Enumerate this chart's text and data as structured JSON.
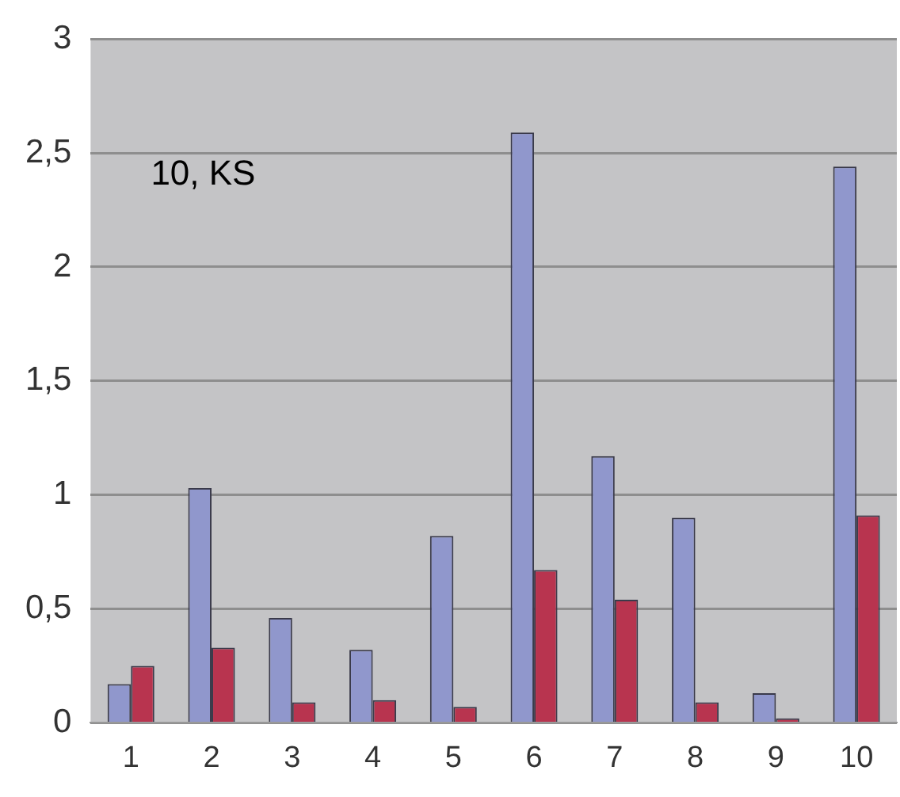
{
  "chart_data": {
    "type": "bar",
    "categories": [
      "1",
      "2",
      "3",
      "4",
      "5",
      "6",
      "7",
      "8",
      "9",
      "10"
    ],
    "series": [
      {
        "color": "#9097cc",
        "values": [
          0.17,
          1.03,
          0.46,
          0.32,
          0.82,
          2.59,
          1.17,
          0.9,
          0.13,
          2.44
        ]
      },
      {
        "color": "#b8344f",
        "values": [
          0.25,
          0.33,
          0.09,
          0.1,
          0.07,
          0.67,
          0.54,
          0.09,
          0.02,
          0.91
        ]
      }
    ],
    "ylim": [
      0,
      3
    ],
    "yticks": [
      0,
      {
        "value": 0.5,
        "label": "0,5"
      },
      1,
      {
        "value": 1.5,
        "label": "1,5"
      },
      2,
      {
        "value": 2.5,
        "label": "2,5"
      },
      3
    ],
    "grid": "y",
    "legend": false,
    "annotations": [
      "10, KS"
    ]
  }
}
